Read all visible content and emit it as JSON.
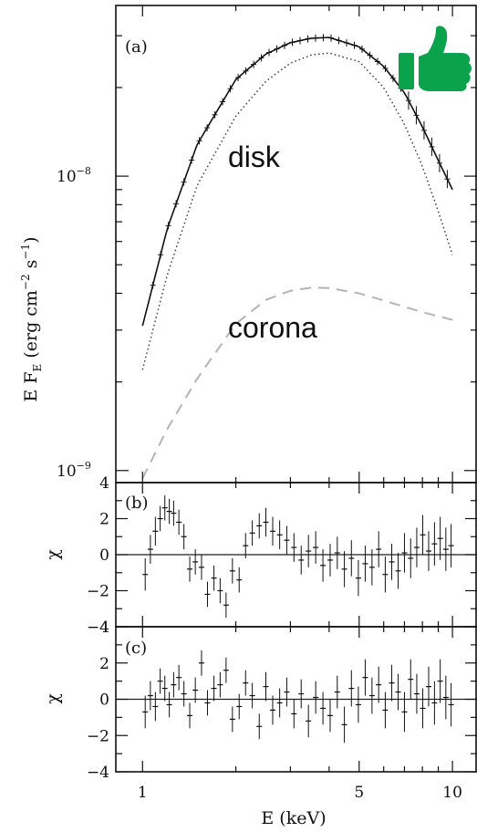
{
  "colors": {
    "data": "#111111",
    "disk_model": "#333333",
    "corona_model": "#b4b4b4",
    "thumb": "#0aa24a",
    "zero_line": "#222222"
  },
  "icons": {
    "thumb": "thumbs-up-icon"
  },
  "annotations": {
    "disk": "disk",
    "corona": "corona"
  },
  "chart_data": [
    {
      "panel": "(a)",
      "type": "line",
      "xscale": "log",
      "yscale": "log",
      "xlim": [
        0.82,
        12.0
      ],
      "ylim": [
        9.1e-10,
        3.8e-08
      ],
      "ylabel_parts": [
        "E F",
        "E",
        " (erg cm",
        "−2",
        " s",
        "−1",
        ")"
      ],
      "yticks": [
        {
          "mantissa": "10",
          "exp": "−8",
          "value": 1e-08
        },
        {
          "mantissa": "10",
          "exp": "−9",
          "value": 1e-09
        }
      ],
      "series": [
        {
          "role": "data+total model",
          "style": "solid with error bars",
          "x": [
            1.0,
            1.2,
            1.5,
            2.0,
            2.5,
            3.0,
            3.5,
            4.0,
            5.0,
            6.0,
            7.0,
            8.0,
            9.0,
            10.0
          ],
          "y": [
            3.1e-09,
            6.6e-09,
            1.28e-08,
            2.13e-08,
            2.6e-08,
            2.84e-08,
            2.94e-08,
            2.96e-08,
            2.75e-08,
            2.36e-08,
            1.92e-08,
            1.47e-08,
            1.13e-08,
            9e-09
          ]
        },
        {
          "role": "disk",
          "style": "dotted",
          "x": [
            1.0,
            1.2,
            1.5,
            2.0,
            2.5,
            3.0,
            3.5,
            4.0,
            5.0,
            6.0,
            7.0,
            8.0,
            9.0,
            10.0
          ],
          "y": [
            2.2e-09,
            4.6e-09,
            9.3e-09,
            1.6e-08,
            2.1e-08,
            2.42e-08,
            2.58e-08,
            2.62e-08,
            2.45e-08,
            2e-08,
            1.5e-08,
            1.08e-08,
            7.6e-09,
            5.4e-09
          ]
        },
        {
          "role": "corona",
          "style": "dashed",
          "x": [
            1.0,
            1.2,
            1.5,
            2.0,
            2.5,
            3.0,
            3.5,
            4.0,
            5.0,
            6.0,
            7.0,
            8.0,
            10.0
          ],
          "y": [
            9.4e-10,
            1.38e-09,
            2.05e-09,
            3.15e-09,
            3.8e-09,
            4.08e-09,
            4.18e-09,
            4.17e-09,
            4e-09,
            3.78e-09,
            3.6e-09,
            3.45e-09,
            3.25e-09
          ]
        }
      ]
    },
    {
      "panel": "(b)",
      "type": "scatter",
      "xscale": "log",
      "xlim": [
        0.82,
        12.0
      ],
      "ylim": [
        -4,
        4
      ],
      "ylabel": "χ",
      "yticks": [
        "4",
        "2",
        "0",
        "−2",
        "−4"
      ],
      "ytick_values": [
        4,
        2,
        0,
        -2,
        -4
      ],
      "x": [
        1.02,
        1.06,
        1.1,
        1.14,
        1.18,
        1.22,
        1.26,
        1.31,
        1.36,
        1.42,
        1.48,
        1.55,
        1.62,
        1.7,
        1.78,
        1.86,
        1.95,
        2.05,
        2.15,
        2.26,
        2.38,
        2.5,
        2.63,
        2.77,
        2.92,
        3.08,
        3.25,
        3.43,
        3.62,
        3.82,
        4.03,
        4.25,
        4.48,
        4.72,
        4.97,
        5.23,
        5.5,
        5.78,
        6.07,
        6.37,
        6.68,
        7.0,
        7.33,
        7.67,
        8.02,
        8.38,
        8.75,
        9.13,
        9.52,
        9.9
      ],
      "y": [
        -1.1,
        0.3,
        1.3,
        2.0,
        2.6,
        2.4,
        2.3,
        1.8,
        1.0,
        -0.8,
        -0.4,
        -0.7,
        -2.2,
        -1.3,
        -2.0,
        -2.8,
        -0.9,
        -1.4,
        0.5,
        1.2,
        1.6,
        1.8,
        1.3,
        1.1,
        0.8,
        0.4,
        -0.3,
        0.2,
        0.4,
        -0.6,
        -0.3,
        0.1,
        -0.8,
        -0.2,
        -1.3,
        -0.5,
        -0.7,
        0.3,
        -1.1,
        -0.4,
        -0.9,
        0.1,
        -0.2,
        0.4,
        1.1,
        0.2,
        0.6,
        0.9,
        0.3,
        0.5
      ],
      "err": [
        0.9,
        0.8,
        0.8,
        0.7,
        0.7,
        0.7,
        0.7,
        0.7,
        0.7,
        0.7,
        0.7,
        0.7,
        0.7,
        0.7,
        0.7,
        0.7,
        0.7,
        0.7,
        0.7,
        0.7,
        0.7,
        0.8,
        0.8,
        0.8,
        0.8,
        0.8,
        0.8,
        0.9,
        0.9,
        0.9,
        0.9,
        0.9,
        1.0,
        1.0,
        1.0,
        1.0,
        1.0,
        1.0,
        1.0,
        1.0,
        1.0,
        1.1,
        1.1,
        1.1,
        1.1,
        1.1,
        1.2,
        1.2,
        1.2,
        1.2
      ]
    },
    {
      "panel": "(c)",
      "type": "scatter",
      "xscale": "log",
      "xlim": [
        0.82,
        12.0
      ],
      "ylim": [
        -4,
        4
      ],
      "ylabel": "χ",
      "yticks": [
        "4",
        "2",
        "0",
        "−2",
        "−4"
      ],
      "ytick_values": [
        4,
        2,
        0,
        -2,
        -4
      ],
      "xticks": [
        "1",
        "5",
        "10"
      ],
      "xtick_values": [
        1,
        5,
        10
      ],
      "xlabel": "E (keV)",
      "x": [
        1.02,
        1.06,
        1.1,
        1.14,
        1.18,
        1.22,
        1.26,
        1.31,
        1.36,
        1.42,
        1.48,
        1.55,
        1.62,
        1.7,
        1.78,
        1.86,
        1.95,
        2.05,
        2.15,
        2.26,
        2.38,
        2.5,
        2.63,
        2.77,
        2.92,
        3.08,
        3.25,
        3.43,
        3.62,
        3.82,
        4.03,
        4.25,
        4.48,
        4.72,
        4.97,
        5.23,
        5.5,
        5.78,
        6.07,
        6.37,
        6.68,
        7.0,
        7.33,
        7.67,
        8.02,
        8.38,
        8.75,
        9.13,
        9.52,
        9.9
      ],
      "y": [
        -0.7,
        0.2,
        -0.4,
        1.0,
        0.6,
        -0.3,
        0.8,
        1.2,
        0.3,
        -0.9,
        0.5,
        2.0,
        -0.2,
        0.6,
        0.8,
        1.6,
        -1.1,
        -0.4,
        0.9,
        0.2,
        -1.5,
        0.7,
        -0.6,
        -0.2,
        0.4,
        -0.8,
        0.3,
        -1.2,
        0.1,
        -0.5,
        -0.9,
        0.4,
        -1.4,
        0.6,
        -0.3,
        1.2,
        0.2,
        0.8,
        -0.6,
        0.9,
        0.4,
        -0.7,
        1.1,
        0.3,
        -0.5,
        0.7,
        -0.2,
        1.0,
        0.1,
        -0.3
      ],
      "err": [
        0.9,
        0.8,
        0.8,
        0.7,
        0.7,
        0.7,
        0.7,
        0.7,
        0.7,
        0.7,
        0.7,
        0.7,
        0.7,
        0.7,
        0.7,
        0.7,
        0.7,
        0.7,
        0.7,
        0.7,
        0.7,
        0.8,
        0.8,
        0.8,
        0.8,
        0.8,
        0.8,
        0.9,
        0.9,
        0.9,
        0.9,
        0.9,
        1.0,
        1.0,
        1.0,
        1.0,
        1.0,
        1.0,
        1.0,
        1.0,
        1.0,
        1.1,
        1.1,
        1.1,
        1.1,
        1.1,
        1.2,
        1.2,
        1.2,
        1.2
      ]
    }
  ]
}
